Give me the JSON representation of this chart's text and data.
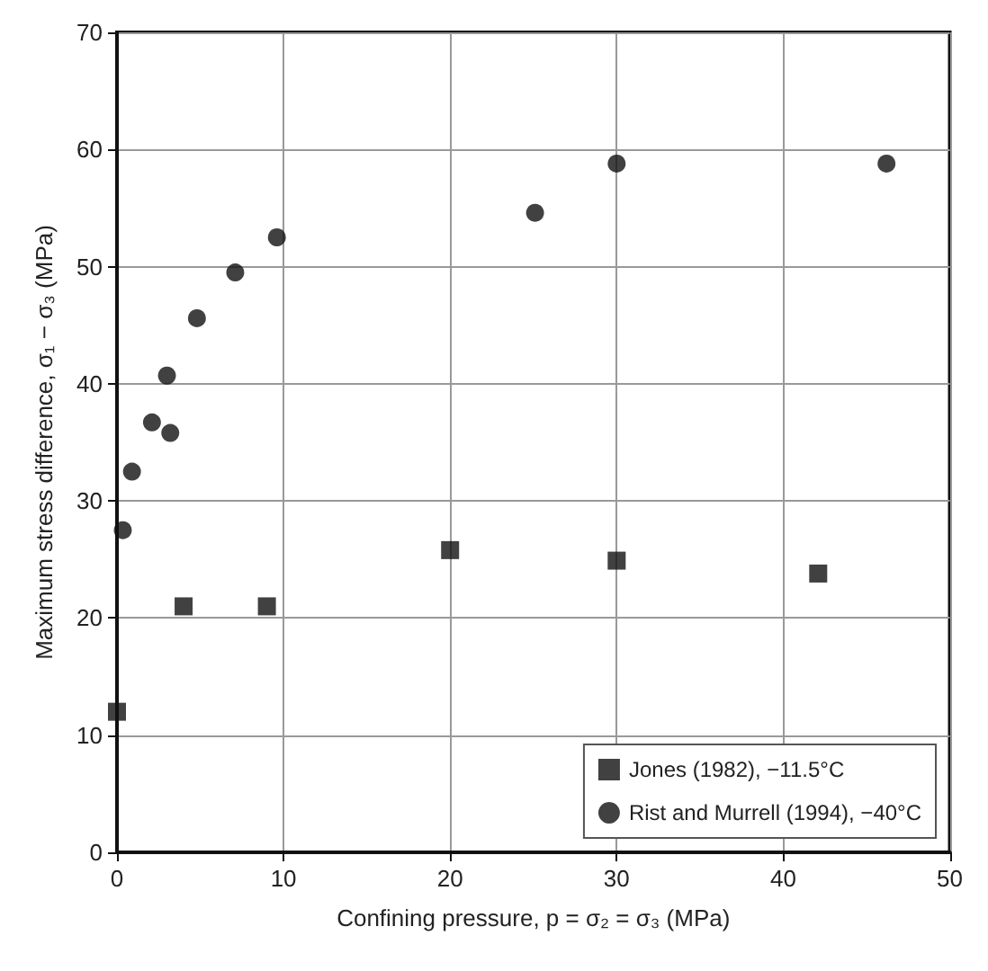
{
  "chart_data": {
    "type": "scatter",
    "xlabel": "Confining pressure, p = σ₂ = σ₃ (MPa)",
    "ylabel": "Maximum stress difference, σ₁ − σ₃ (MPa)",
    "xlim": [
      0,
      50
    ],
    "xticks": [
      0,
      10,
      20,
      30,
      40,
      50
    ],
    "ylim": [
      0,
      70
    ],
    "yticks": [
      0,
      10,
      20,
      30,
      40,
      50,
      60,
      70
    ],
    "grid": true,
    "legend": "bottom right",
    "series": [
      {
        "name": "Jones (1982), −11.5°C",
        "color": "#111111",
        "marker": "square",
        "x": [
          0,
          4.0,
          9.0,
          20,
          30,
          42.1
        ],
        "values": [
          12,
          21,
          21,
          25.8,
          24.9,
          23.8
        ]
      },
      {
        "name": "Rist and Murrell (1994), −40°C",
        "color": "#111111",
        "marker": "circle",
        "x": [
          0.35,
          0.9,
          2.1,
          3.0,
          3.2,
          4.8,
          7.1,
          9.6,
          25.1,
          30,
          46.2
        ],
        "values": [
          27.5,
          32.5,
          36.7,
          40.7,
          35.8,
          45.6,
          49.5,
          52.5,
          54.6,
          58.8,
          58.8
        ]
      }
    ]
  }
}
